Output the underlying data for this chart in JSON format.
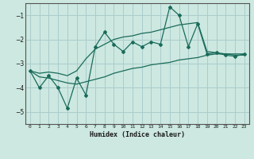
{
  "xlabel": "Humidex (Indice chaleur)",
  "bg_color": "#cce8e0",
  "grid_color": "#aacccc",
  "line_color": "#1a6b5a",
  "x_data": [
    0,
    1,
    2,
    3,
    4,
    5,
    6,
    7,
    8,
    9,
    10,
    11,
    12,
    13,
    14,
    15,
    16,
    17,
    18,
    19,
    20,
    21,
    22,
    23
  ],
  "main_y": [
    -3.3,
    -4.0,
    -3.5,
    -4.0,
    -4.85,
    -3.6,
    -4.3,
    -2.3,
    -1.7,
    -2.2,
    -2.5,
    -2.1,
    -2.3,
    -2.1,
    -2.2,
    -0.65,
    -1.0,
    -2.3,
    -1.35,
    -2.6,
    -2.55,
    -2.65,
    -2.7,
    -2.6
  ],
  "upper_y": [
    -3.3,
    -3.4,
    -3.35,
    -3.4,
    -3.5,
    -3.3,
    -2.8,
    -2.4,
    -2.2,
    -2.0,
    -1.9,
    -1.85,
    -1.75,
    -1.7,
    -1.6,
    -1.5,
    -1.4,
    -1.35,
    -1.3,
    -2.5,
    -2.55,
    -2.6,
    -2.65,
    -2.65
  ],
  "lower_y": [
    -3.3,
    -3.55,
    -3.6,
    -3.7,
    -3.8,
    -3.85,
    -3.75,
    -3.65,
    -3.55,
    -3.4,
    -3.3,
    -3.2,
    -3.15,
    -3.05,
    -3.0,
    -2.95,
    -2.85,
    -2.8,
    -2.75,
    -2.65,
    -2.6,
    -2.6,
    -2.6,
    -2.6
  ],
  "ylim": [
    -5.5,
    -0.5
  ],
  "xlim": [
    -0.5,
    23.5
  ],
  "yticks": [
    -5,
    -4,
    -3,
    -2,
    -1
  ],
  "xticks": [
    0,
    1,
    2,
    3,
    4,
    5,
    6,
    7,
    8,
    9,
    10,
    11,
    12,
    13,
    14,
    15,
    16,
    17,
    18,
    19,
    20,
    21,
    22,
    23
  ]
}
